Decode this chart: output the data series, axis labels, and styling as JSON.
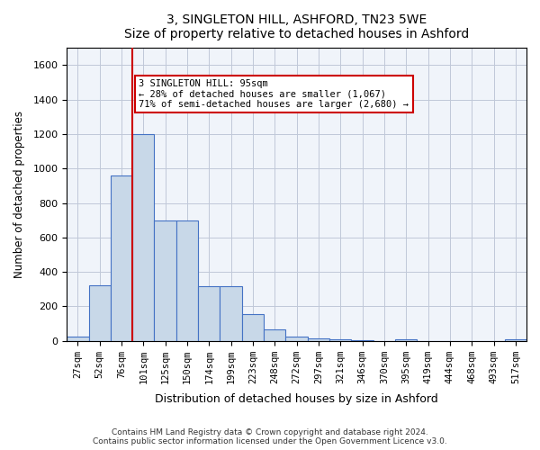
{
  "title": "3, SINGLETON HILL, ASHFORD, TN23 5WE",
  "subtitle": "Size of property relative to detached houses in Ashford",
  "xlabel": "Distribution of detached houses by size in Ashford",
  "ylabel": "Number of detached properties",
  "footnote1": "Contains HM Land Registry data © Crown copyright and database right 2024.",
  "footnote2": "Contains public sector information licensed under the Open Government Licence v3.0.",
  "bar_color": "#c8d8e8",
  "bar_edge_color": "#4472c4",
  "grid_color": "#c0c8d8",
  "background_color": "#f0f4fa",
  "categories": [
    "27sqm",
    "52sqm",
    "76sqm",
    "101sqm",
    "125sqm",
    "150sqm",
    "174sqm",
    "199sqm",
    "223sqm",
    "248sqm",
    "272sqm",
    "297sqm",
    "321sqm",
    "346sqm",
    "370sqm",
    "395sqm",
    "419sqm",
    "444sqm",
    "468sqm",
    "493sqm",
    "517sqm"
  ],
  "values": [
    25,
    320,
    960,
    1200,
    700,
    700,
    315,
    315,
    155,
    65,
    25,
    15,
    10,
    5,
    0,
    10,
    0,
    0,
    0,
    0,
    10
  ],
  "ylim": [
    0,
    1700
  ],
  "yticks": [
    0,
    200,
    400,
    600,
    800,
    1000,
    1200,
    1400,
    1600
  ],
  "property_line_x": 3,
  "annotation_title": "3 SINGLETON HILL: 95sqm",
  "annotation_line1": "← 28% of detached houses are smaller (1,067)",
  "annotation_line2": "71% of semi-detached houses are larger (2,680) →",
  "red_line_color": "#cc0000"
}
